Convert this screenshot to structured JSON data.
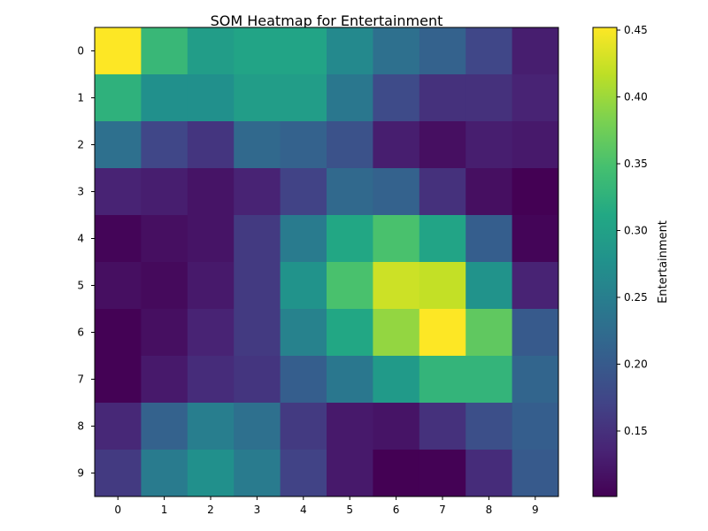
{
  "chart_data": {
    "type": "heatmap",
    "title": "SOM Heatmap for Entertainment",
    "colorbar_label": "Entertainment",
    "colormap": "viridis",
    "x_tick_labels": [
      "0",
      "1",
      "2",
      "3",
      "4",
      "5",
      "6",
      "7",
      "8",
      "9"
    ],
    "y_tick_labels": [
      "0",
      "1",
      "2",
      "3",
      "4",
      "5",
      "6",
      "7",
      "8",
      "9"
    ],
    "colorbar_ticks": [
      0.15,
      0.2,
      0.25,
      0.3,
      0.35,
      0.4,
      0.45
    ],
    "colorbar_tick_labels": [
      "0.15",
      "0.20",
      "0.25",
      "0.30",
      "0.35",
      "0.40",
      "0.45"
    ],
    "vmin": 0.101,
    "vmax": 0.452,
    "values": [
      [
        0.452,
        0.335,
        0.295,
        0.305,
        0.305,
        0.265,
        0.23,
        0.21,
        0.175,
        0.13
      ],
      [
        0.325,
        0.275,
        0.275,
        0.295,
        0.295,
        0.24,
        0.18,
        0.15,
        0.15,
        0.135
      ],
      [
        0.23,
        0.175,
        0.155,
        0.22,
        0.21,
        0.19,
        0.13,
        0.115,
        0.13,
        0.125
      ],
      [
        0.135,
        0.13,
        0.12,
        0.135,
        0.17,
        0.22,
        0.21,
        0.15,
        0.115,
        0.101
      ],
      [
        0.105,
        0.115,
        0.12,
        0.16,
        0.245,
        0.31,
        0.35,
        0.305,
        0.205,
        0.105
      ],
      [
        0.115,
        0.11,
        0.125,
        0.16,
        0.28,
        0.35,
        0.425,
        0.42,
        0.28,
        0.135
      ],
      [
        0.102,
        0.115,
        0.135,
        0.16,
        0.255,
        0.31,
        0.395,
        0.452,
        0.365,
        0.2
      ],
      [
        0.102,
        0.125,
        0.145,
        0.155,
        0.205,
        0.24,
        0.29,
        0.33,
        0.33,
        0.215
      ],
      [
        0.14,
        0.21,
        0.25,
        0.23,
        0.16,
        0.125,
        0.12,
        0.15,
        0.185,
        0.205
      ],
      [
        0.16,
        0.245,
        0.275,
        0.245,
        0.17,
        0.125,
        0.101,
        0.102,
        0.145,
        0.2
      ]
    ]
  }
}
